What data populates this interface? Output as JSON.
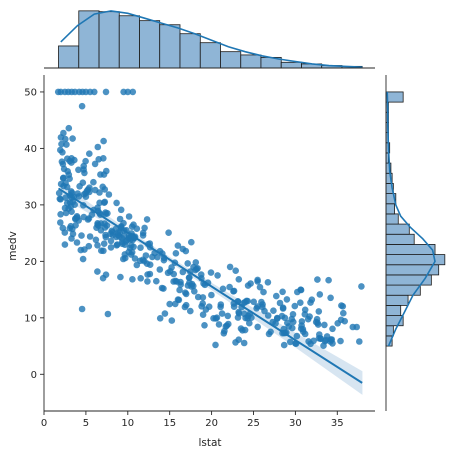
{
  "chart_data": {
    "type": "scatter",
    "title": "",
    "xlabel": "lstat",
    "ylabel": "medv",
    "xlim": [
      0,
      39.5
    ],
    "ylim": [
      -6.5,
      53
    ],
    "x_ticks": [
      "0",
      "5",
      "10",
      "15",
      "20",
      "25",
      "30",
      "35"
    ],
    "y_ticks": [
      "0",
      "10",
      "20",
      "30",
      "40",
      "50"
    ],
    "grid": false,
    "legend": "none",
    "colors": {
      "points": "#1f77b4",
      "hist_fill": "#8fb5d6",
      "hist_edge": "#1a1a1a",
      "ci_band": "#c9dcec"
    },
    "regression": {
      "slope": -0.95,
      "intercept": 34.55,
      "x_range": [
        1.73,
        37.97
      ]
    },
    "ci_band": {
      "x": [
        2,
        5,
        10,
        15,
        20,
        25,
        30,
        35,
        38
      ],
      "half_width": [
        1.3,
        1.0,
        0.55,
        0.5,
        0.65,
        0.95,
        1.3,
        1.8,
        2.1
      ]
    },
    "points": {
      "capped_at_50": [
        [
          1.7,
          50
        ],
        [
          2.0,
          50
        ],
        [
          2.5,
          50
        ],
        [
          2.9,
          50
        ],
        [
          3.3,
          50
        ],
        [
          3.7,
          50
        ],
        [
          4.2,
          50
        ],
        [
          4.6,
          50
        ],
        [
          5.0,
          50
        ],
        [
          5.5,
          50
        ],
        [
          6.0,
          50
        ],
        [
          7.4,
          50
        ],
        [
          9.5,
          50
        ],
        [
          10.0,
          50
        ],
        [
          10.6,
          50
        ]
      ],
      "n_cloud": 430
    },
    "marginal_x": {
      "bin_edges": [
        1.73,
        4.15,
        6.57,
        8.98,
        11.4,
        13.81,
        16.23,
        18.65,
        21.06,
        23.48,
        25.89,
        28.31,
        30.73,
        33.14,
        35.56,
        37.97
      ],
      "counts": [
        27,
        70,
        69,
        64,
        58,
        53,
        42,
        31,
        20,
        16,
        13,
        7,
        5,
        3,
        2
      ],
      "kde": [
        [
          2,
          32
        ],
        [
          4,
          52
        ],
        [
          6,
          66
        ],
        [
          8,
          70
        ],
        [
          10,
          67
        ],
        [
          12,
          61
        ],
        [
          14,
          55
        ],
        [
          16,
          49
        ],
        [
          18,
          42
        ],
        [
          20,
          34
        ],
        [
          22,
          26
        ],
        [
          24,
          20
        ],
        [
          26,
          15
        ],
        [
          28,
          11
        ],
        [
          30,
          8
        ],
        [
          32,
          5
        ],
        [
          34,
          3
        ],
        [
          36,
          2
        ],
        [
          38,
          1
        ]
      ]
    },
    "marginal_y": {
      "bin_edges": [
        5.0,
        6.8,
        8.6,
        10.4,
        12.2,
        14.0,
        15.8,
        17.6,
        19.4,
        21.2,
        23.0,
        24.8,
        26.6,
        28.4,
        30.2,
        32.0,
        33.8,
        35.6,
        37.4,
        39.2,
        41.0,
        42.8,
        44.6,
        46.4,
        48.2,
        50.0
      ],
      "counts": [
        5,
        6,
        14,
        12,
        18,
        28,
        37,
        43,
        48,
        40,
        23,
        19,
        10,
        7,
        8,
        6,
        5,
        4,
        2,
        3,
        2,
        2,
        2,
        2,
        14
      ],
      "kde": [
        [
          5,
          2
        ],
        [
          8,
          8
        ],
        [
          11,
          15
        ],
        [
          14,
          22
        ],
        [
          17,
          32
        ],
        [
          20,
          40
        ],
        [
          22,
          38
        ],
        [
          24,
          30
        ],
        [
          26,
          20
        ],
        [
          28,
          12
        ],
        [
          30,
          8
        ],
        [
          33,
          5
        ],
        [
          36,
          3
        ],
        [
          40,
          2
        ],
        [
          44,
          1.5
        ],
        [
          47,
          1.5
        ],
        [
          50,
          1
        ]
      ]
    }
  }
}
